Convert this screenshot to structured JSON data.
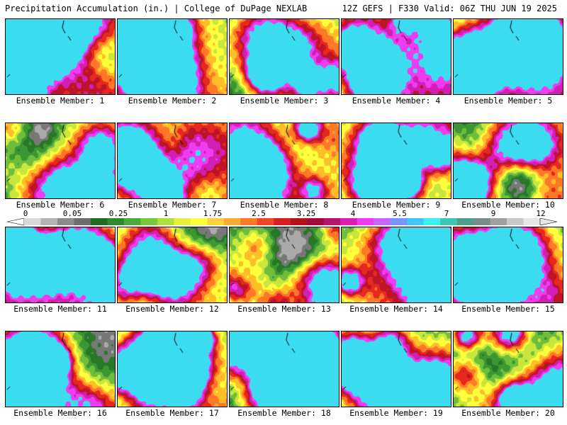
{
  "header": {
    "left": "Precipitation Accumulation (in.) | College of DuPage NEXLAB",
    "right": "12Z GEFS | F330 Valid: 06Z THU JUN 19 2025"
  },
  "colorbar": {
    "tick_labels": [
      "0",
      "0.05",
      "0.25",
      "1",
      "1.75",
      "2.5",
      "3.25",
      "4",
      "5.5",
      "7",
      "9",
      "12"
    ],
    "colors": [
      "#d8d8d8",
      "#b4b4b4",
      "#8c8c8c",
      "#6e6e6e",
      "#1e6e1e",
      "#2e8b2e",
      "#4aaa3a",
      "#78c83c",
      "#aee03c",
      "#e8f03c",
      "#ffff3c",
      "#ffd23c",
      "#ffaa32",
      "#ff7828",
      "#f04628",
      "#d71e1e",
      "#b41414",
      "#a00a3c",
      "#b4146e",
      "#dc1eb4",
      "#f03cf0",
      "#c864ff",
      "#7896ff",
      "#3cc8ff",
      "#3cf0f0",
      "#3cc8b4",
      "#4ba08c",
      "#788c8c",
      "#a0a0a0",
      "#c8c8c8",
      "#e6e6e6"
    ]
  },
  "panels": [
    {
      "label": "Ensemble Member: 1"
    },
    {
      "label": "Ensemble Member: 2"
    },
    {
      "label": "Ensemble Member: 3"
    },
    {
      "label": "Ensemble Member: 4"
    },
    {
      "label": "Ensemble Member: 5"
    },
    {
      "label": "Ensemble Member: 6"
    },
    {
      "label": "Ensemble Member: 7"
    },
    {
      "label": "Ensemble Member: 8"
    },
    {
      "label": "Ensemble Member: 9"
    },
    {
      "label": "Ensemble Member: 10"
    },
    {
      "label": "Ensemble Member: 11"
    },
    {
      "label": "Ensemble Member: 12"
    },
    {
      "label": "Ensemble Member: 13"
    },
    {
      "label": "Ensemble Member: 14"
    },
    {
      "label": "Ensemble Member: 15"
    },
    {
      "label": "Ensemble Member: 16"
    },
    {
      "label": "Ensemble Member: 17"
    },
    {
      "label": "Ensemble Member: 18"
    },
    {
      "label": "Ensemble Member: 19"
    },
    {
      "label": "Ensemble Member: 20"
    }
  ]
}
